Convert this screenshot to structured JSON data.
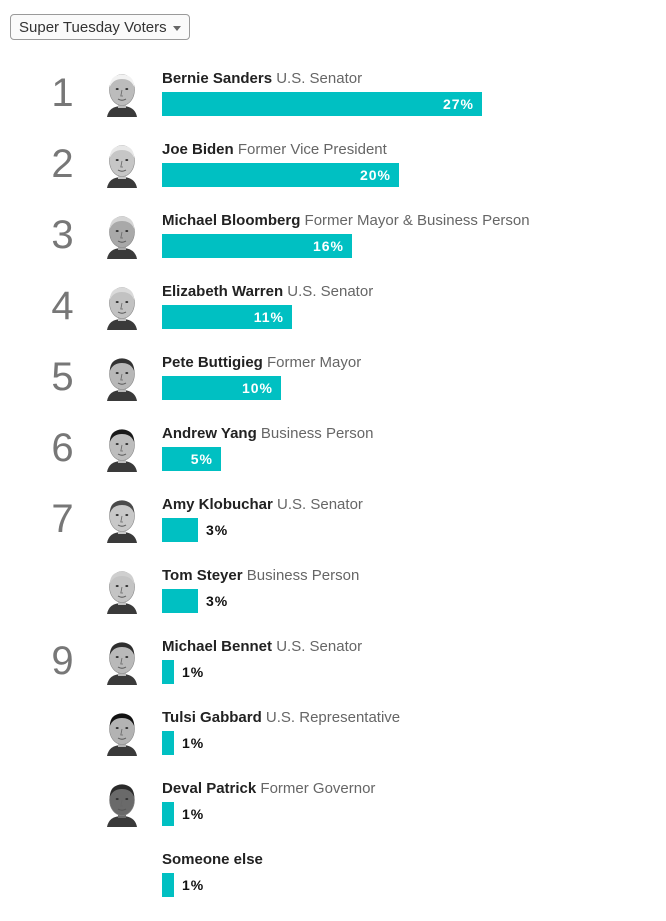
{
  "filter": {
    "selected": "Super Tuesday Voters",
    "icon": "caret-down-icon"
  },
  "chart_data": {
    "type": "bar",
    "orientation": "horizontal",
    "title": "",
    "xlabel": "",
    "ylabel": "",
    "xlim": [
      0,
      100
    ],
    "grid": false,
    "bar_color": "#00c0c2",
    "categories": [
      "Bernie Sanders",
      "Joe Biden",
      "Michael Bloomberg",
      "Elizabeth Warren",
      "Pete Buttigieg",
      "Andrew Yang",
      "Amy Klobuchar",
      "Tom Steyer",
      "Michael Bennet",
      "Tulsi Gabbard",
      "Deval Patrick",
      "Someone else"
    ],
    "values": [
      27,
      20,
      16,
      11,
      10,
      5,
      3,
      3,
      1,
      1,
      1,
      1
    ],
    "rows": [
      {
        "rank": "1",
        "name": "Bernie Sanders",
        "title": "U.S. Senator",
        "value": 27,
        "label": "27%",
        "photo": "face-bernie-sanders",
        "shade": "#bcbcbc",
        "hair": "#f2f2f2"
      },
      {
        "rank": "2",
        "name": "Joe Biden",
        "title": "Former Vice President",
        "value": 20,
        "label": "20%",
        "photo": "face-joe-biden",
        "shade": "#c6c6c6",
        "hair": "#e8e8e8"
      },
      {
        "rank": "3",
        "name": "Michael Bloomberg",
        "title": "Former Mayor & Business Person",
        "value": 16,
        "label": "16%",
        "photo": "face-michael-bloomberg",
        "shade": "#a9a9a9",
        "hair": "#d6d6d6"
      },
      {
        "rank": "4",
        "name": "Elizabeth Warren",
        "title": "U.S. Senator",
        "value": 11,
        "label": "11%",
        "photo": "face-elizabeth-warren",
        "shade": "#c2c2c2",
        "hair": "#dadada"
      },
      {
        "rank": "5",
        "name": "Pete Buttigieg",
        "title": "Former Mayor",
        "value": 10,
        "label": "10%",
        "photo": "face-pete-buttigieg",
        "shade": "#b8b8b8",
        "hair": "#333333"
      },
      {
        "rank": "6",
        "name": "Andrew Yang",
        "title": "Business Person",
        "value": 5,
        "label": "5%",
        "photo": "face-andrew-yang",
        "shade": "#bdbdbd",
        "hair": "#1a1a1a"
      },
      {
        "rank": "7",
        "name": "Amy Klobuchar",
        "title": "U.S. Senator",
        "value": 3,
        "label": "3%",
        "photo": "face-amy-klobuchar",
        "shade": "#c8c8c8",
        "hair": "#4a4a4a"
      },
      {
        "rank": "",
        "name": "Tom Steyer",
        "title": "Business Person",
        "value": 3,
        "label": "3%",
        "photo": "face-tom-steyer",
        "shade": "#c4c4c4",
        "hair": "#cfcfcf"
      },
      {
        "rank": "9",
        "name": "Michael Bennet",
        "title": "U.S. Senator",
        "value": 1,
        "label": "1%",
        "photo": "face-michael-bennet",
        "shade": "#b9b9b9",
        "hair": "#2e2e2e"
      },
      {
        "rank": "",
        "name": "Tulsi Gabbard",
        "title": "U.S. Representative",
        "value": 1,
        "label": "1%",
        "photo": "face-tulsi-gabbard",
        "shade": "#b3b3b3",
        "hair": "#111111"
      },
      {
        "rank": "",
        "name": "Deval Patrick",
        "title": "Former Governor",
        "value": 1,
        "label": "1%",
        "photo": "face-deval-patrick",
        "shade": "#6a6a6a",
        "hair": "#2a2a2a"
      },
      {
        "rank": "",
        "name": "Someone else",
        "title": "",
        "value": 1,
        "label": "1%",
        "photo": "",
        "shade": "",
        "hair": ""
      }
    ]
  }
}
